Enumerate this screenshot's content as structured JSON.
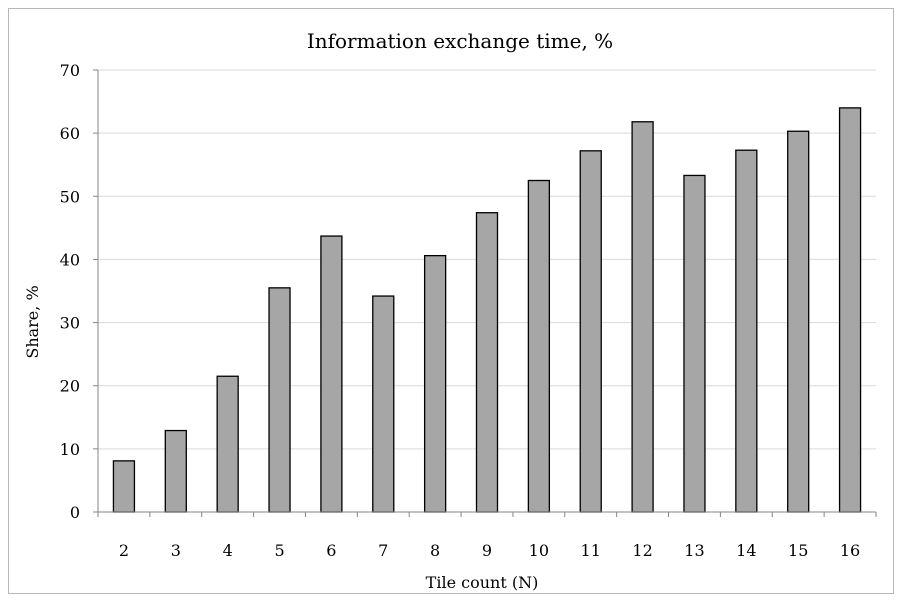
{
  "chart_data": {
    "type": "bar",
    "title": "Information exchange time, %",
    "xlabel": "Tile count (N)",
    "ylabel": "Share, %",
    "ylim": [
      0,
      70
    ],
    "yticks": [
      0,
      10,
      20,
      30,
      40,
      50,
      60,
      70
    ],
    "grid": true,
    "legend": "none",
    "categories": [
      "2",
      "3",
      "4",
      "5",
      "6",
      "7",
      "8",
      "9",
      "10",
      "11",
      "12",
      "13",
      "14",
      "15",
      "16"
    ],
    "values": [
      8.1,
      12.9,
      21.5,
      35.5,
      43.7,
      34.2,
      40.6,
      47.4,
      52.5,
      57.2,
      61.8,
      53.3,
      57.3,
      60.3,
      64.0
    ],
    "bar_color": "#a6a6a6",
    "bar_edge_color": "#000000",
    "grid_color": "#d9d9d9"
  }
}
